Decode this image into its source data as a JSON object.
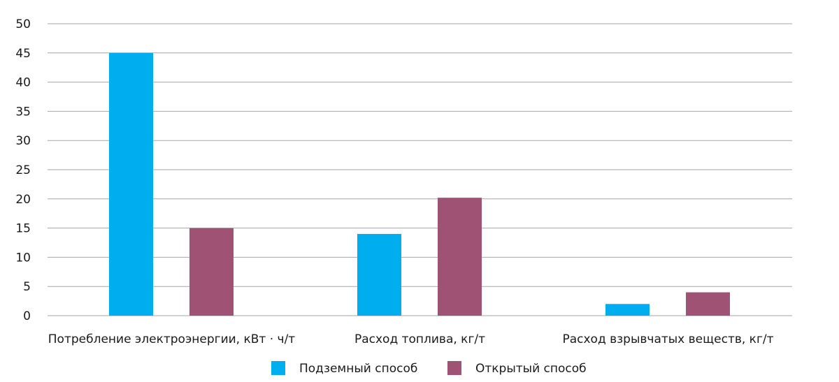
{
  "chart_data": {
    "type": "bar",
    "categories": [
      "Потребление электроэнергии, кВт · ч/т",
      "Расход топлива, кг/т",
      "Расход взрывчатых веществ, кг/т"
    ],
    "series": [
      {
        "name": "Подземный способ",
        "color": "#00aeef",
        "values": [
          45,
          14,
          2
        ]
      },
      {
        "name": "Открытый способ",
        "color": "#a05274",
        "values": [
          15,
          20.2,
          4
        ]
      }
    ],
    "title": "",
    "xlabel": "",
    "ylabel": "",
    "ylim": [
      0,
      50
    ],
    "yticks": [
      "0",
      "5",
      "10",
      "15",
      "20",
      "25",
      "30",
      "35",
      "40",
      "45",
      "50"
    ],
    "grid": true,
    "legend": "bottom-center"
  }
}
